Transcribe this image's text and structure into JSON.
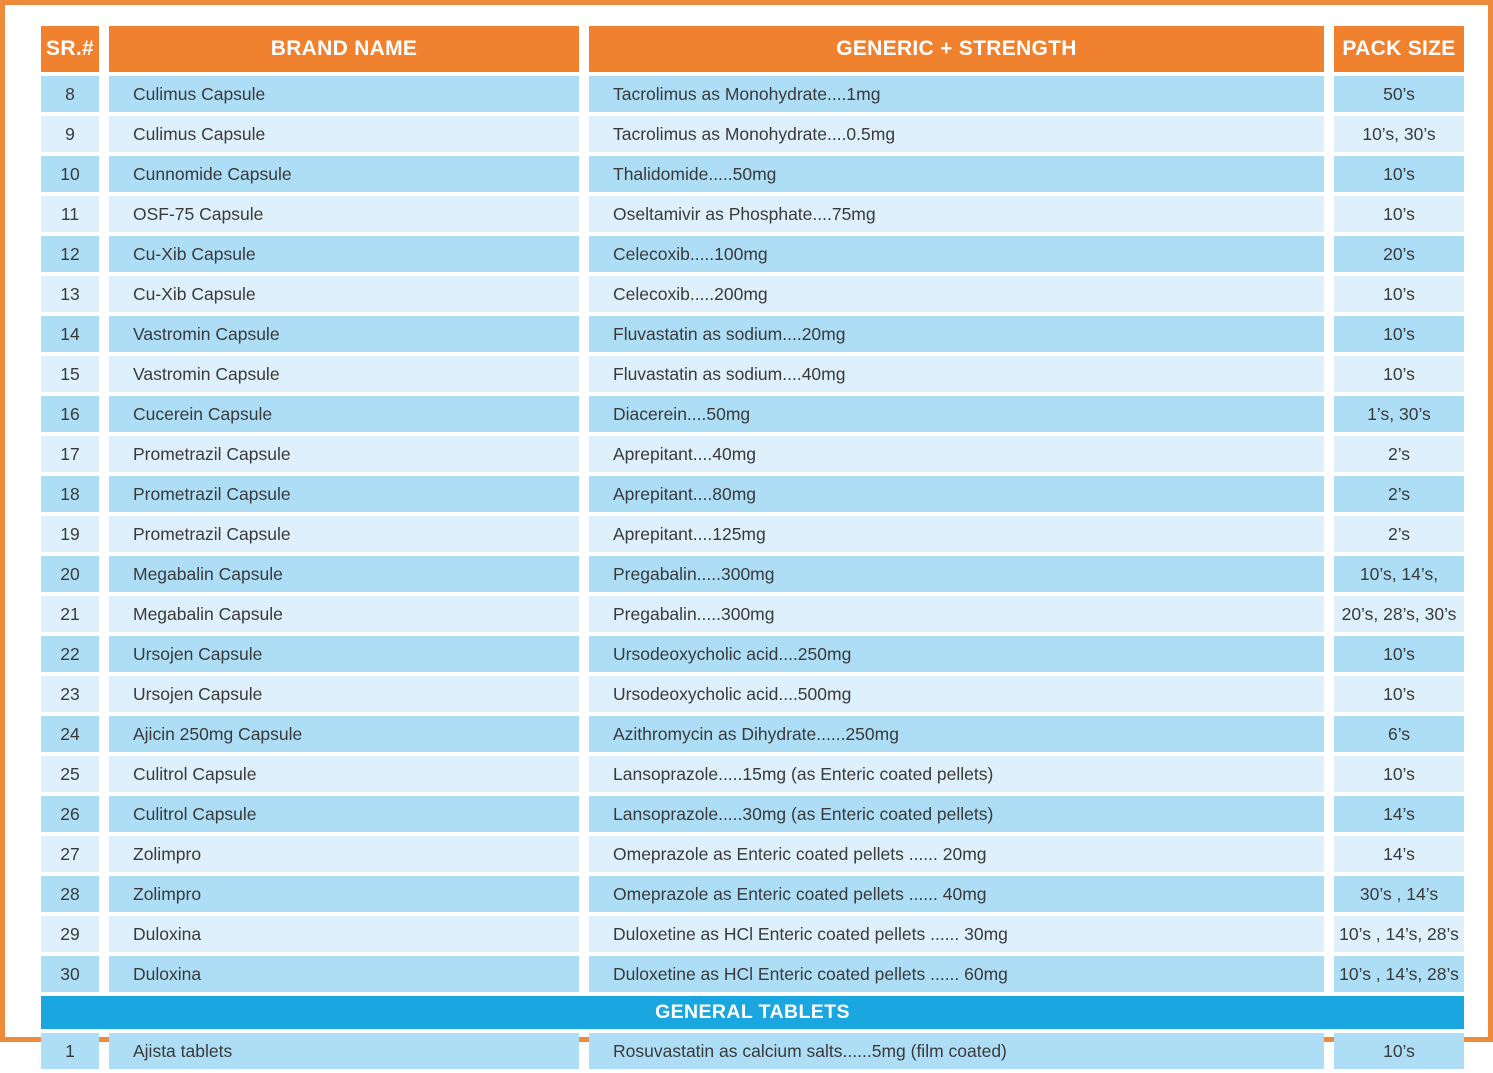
{
  "colors": {
    "frame_border_orange": "#ED8A3C",
    "header_orange": "#F0812F",
    "section_band_blue": "#1AA7E0",
    "row_dark_blue": "#AEDEF5",
    "row_light_blue": "#DDF0FB",
    "text_dark": "#3A3A3A"
  },
  "table": {
    "columns": [
      "SR.#",
      "BRAND NAME",
      "GENERIC + STRENGTH",
      "PACK SIZE"
    ],
    "rows": [
      {
        "sr": "8",
        "brand": "Culimus Capsule",
        "generic": "Tacrolimus as Monohydrate....1mg",
        "pack": "50’s"
      },
      {
        "sr": "9",
        "brand": "Culimus Capsule",
        "generic": "Tacrolimus as Monohydrate....0.5mg",
        "pack": "10’s, 30’s"
      },
      {
        "sr": "10",
        "brand": "Cunnomide Capsule",
        "generic": "Thalidomide.....50mg",
        "pack": "10’s"
      },
      {
        "sr": "11",
        "brand": "OSF-75 Capsule",
        "generic": "Oseltamivir as Phosphate....75mg",
        "pack": "10’s"
      },
      {
        "sr": "12",
        "brand": "Cu-Xib Capsule",
        "generic": "Celecoxib.....100mg",
        "pack": "20’s"
      },
      {
        "sr": "13",
        "brand": "Cu-Xib Capsule",
        "generic": "Celecoxib.....200mg",
        "pack": "10’s"
      },
      {
        "sr": "14",
        "brand": "Vastromin Capsule",
        "generic": "Fluvastatin as sodium....20mg",
        "pack": "10’s"
      },
      {
        "sr": "15",
        "brand": "Vastromin Capsule",
        "generic": "Fluvastatin as sodium....40mg",
        "pack": "10’s"
      },
      {
        "sr": "16",
        "brand": "Cucerein Capsule",
        "generic": "Diacerein....50mg",
        "pack": "1’s, 30’s"
      },
      {
        "sr": "17",
        "brand": "Prometrazil Capsule",
        "generic": "Aprepitant....40mg",
        "pack": "2’s"
      },
      {
        "sr": "18",
        "brand": "Prometrazil Capsule",
        "generic": "Aprepitant....80mg",
        "pack": "2’s"
      },
      {
        "sr": "19",
        "brand": "Prometrazil Capsule",
        "generic": "Aprepitant....125mg",
        "pack": "2’s"
      },
      {
        "sr": "20",
        "brand": "Megabalin Capsule",
        "generic": "Pregabalin.....300mg",
        "pack": "10’s, 14’s,"
      },
      {
        "sr": "21",
        "brand": "Megabalin Capsule",
        "generic": "Pregabalin.....300mg",
        "pack": "20’s, 28’s, 30’s"
      },
      {
        "sr": "22",
        "brand": "Ursojen Capsule",
        "generic": "Ursodeoxycholic acid....250mg",
        "pack": "10’s"
      },
      {
        "sr": "23",
        "brand": "Ursojen Capsule",
        "generic": "Ursodeoxycholic acid....500mg",
        "pack": "10’s"
      },
      {
        "sr": "24",
        "brand": "Ajicin 250mg Capsule",
        "generic": "Azithromycin as Dihydrate......250mg",
        "pack": "6’s"
      },
      {
        "sr": "25",
        "brand": "Culitrol Capsule",
        "generic": "Lansoprazole.....15mg (as Enteric coated pellets)",
        "pack": "10’s"
      },
      {
        "sr": "26",
        "brand": "Culitrol Capsule",
        "generic": "Lansoprazole.....30mg (as Enteric coated pellets)",
        "pack": "14’s"
      },
      {
        "sr": "27",
        "brand": "Zolimpro",
        "generic": "Omeprazole as Enteric coated pellets ...... 20mg",
        "pack": "14’s"
      },
      {
        "sr": "28",
        "brand": "Zolimpro",
        "generic": "Omeprazole as Enteric coated pellets ...... 40mg",
        "pack": "30’s , 14’s"
      },
      {
        "sr": "29",
        "brand": "Duloxina",
        "generic": "Duloxetine as HCl Enteric coated pellets ...... 30mg",
        "pack": "10’s , 14’s, 28’s"
      },
      {
        "sr": "30",
        "brand": "Duloxina",
        "generic": "Duloxetine as HCl Enteric coated pellets ...... 60mg",
        "pack": "10’s , 14’s, 28’s"
      }
    ],
    "section_label": "GENERAL TABLETS",
    "tablet_rows": [
      {
        "sr": "1",
        "brand": "Ajista tablets",
        "generic": "Rosuvastatin as calcium salts......5mg (film coated)",
        "pack": "10’s"
      }
    ]
  }
}
